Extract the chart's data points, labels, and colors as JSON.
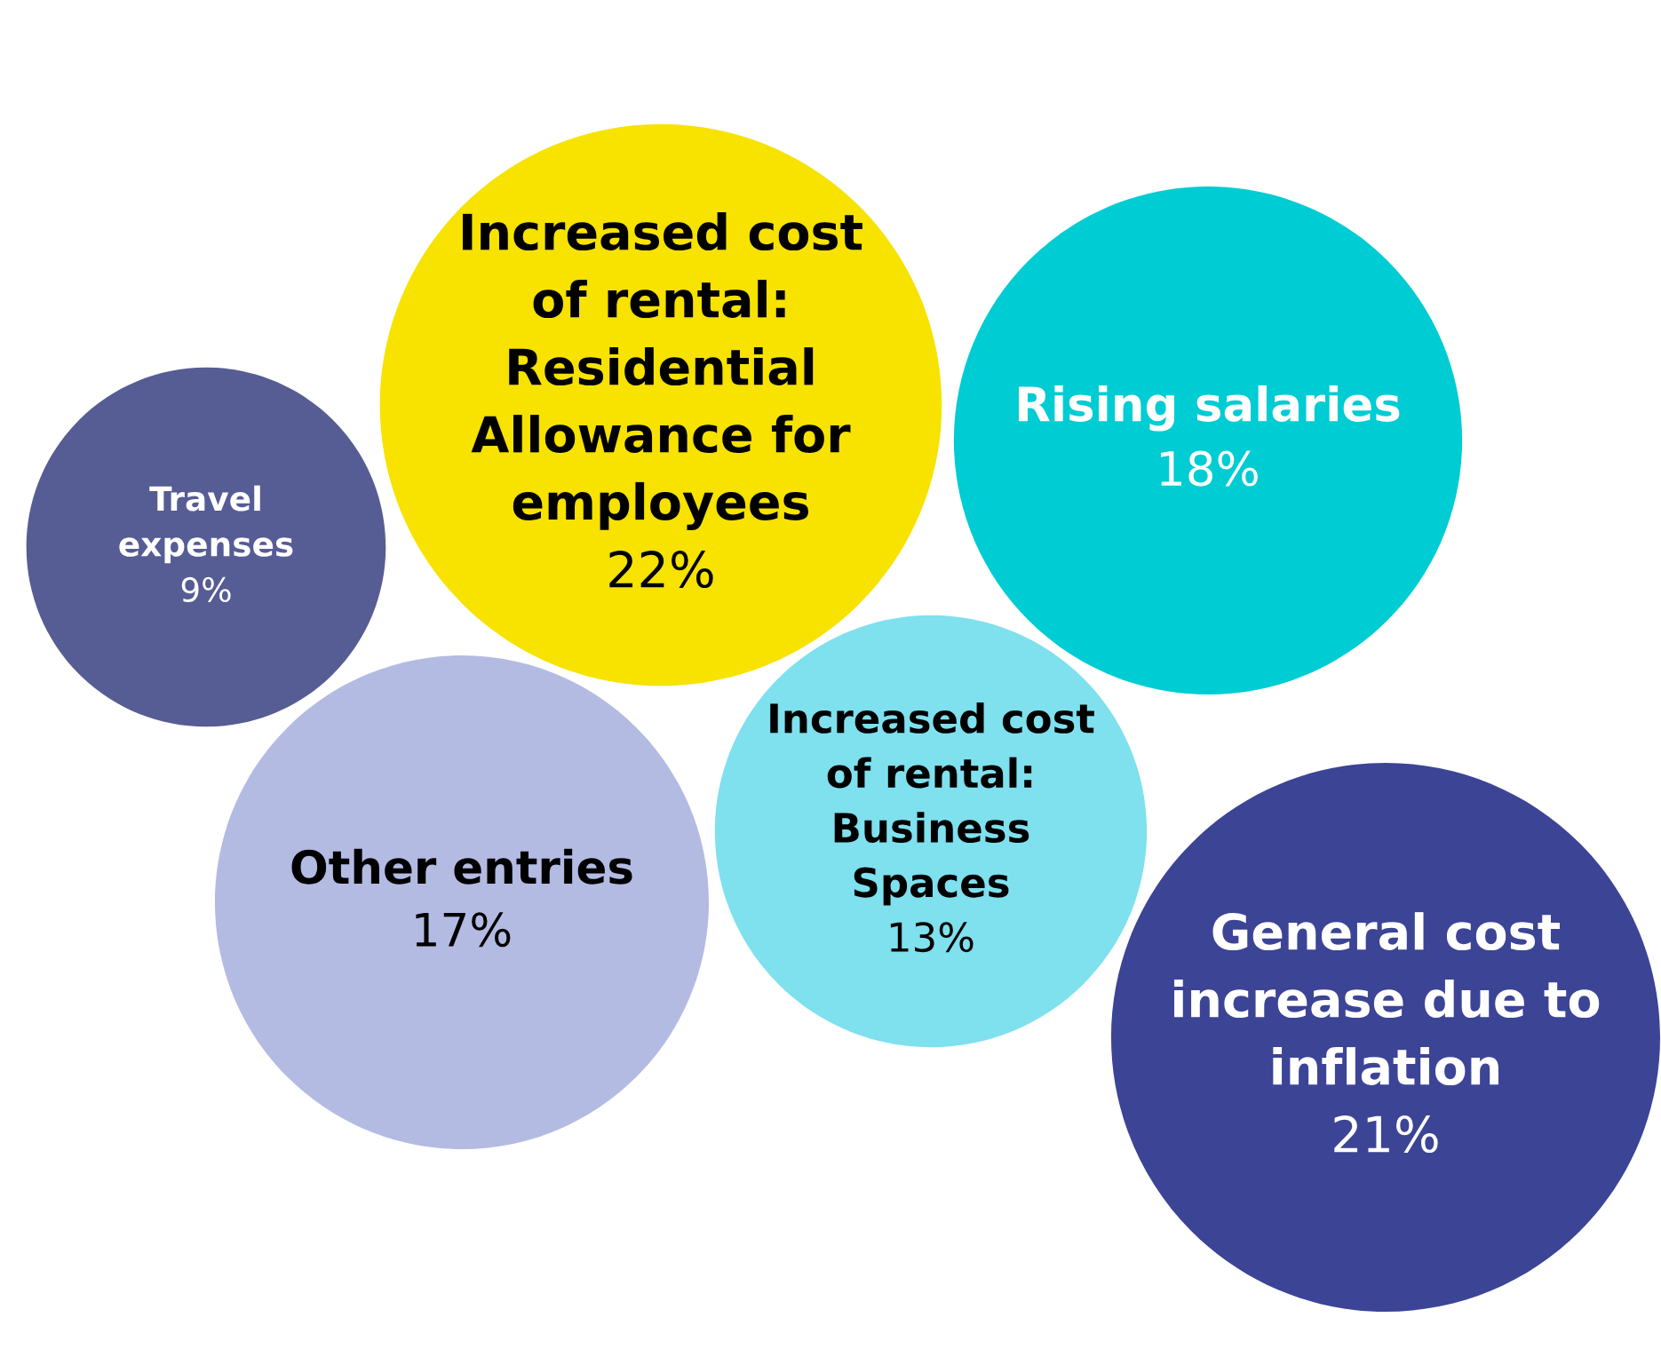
{
  "chart_data": {
    "type": "other",
    "categories": [
      "Increased cost of rental: Residential Allowance for employees",
      "Increased cost of rental: Business Spaces",
      "Other entries",
      "Rising salaries",
      "General cost increase due to inflation",
      "Travel expenses"
    ],
    "values": [
      22,
      13,
      17,
      18,
      21,
      9
    ],
    "value_labels": [
      "22%",
      "13%",
      "17%",
      "18%",
      "21%",
      "9%"
    ],
    "colors": [
      "#f7e200",
      "#7fe0ee",
      "#b3bbe3",
      "#00ccd3",
      "#3c4496",
      "#565c94"
    ]
  }
}
